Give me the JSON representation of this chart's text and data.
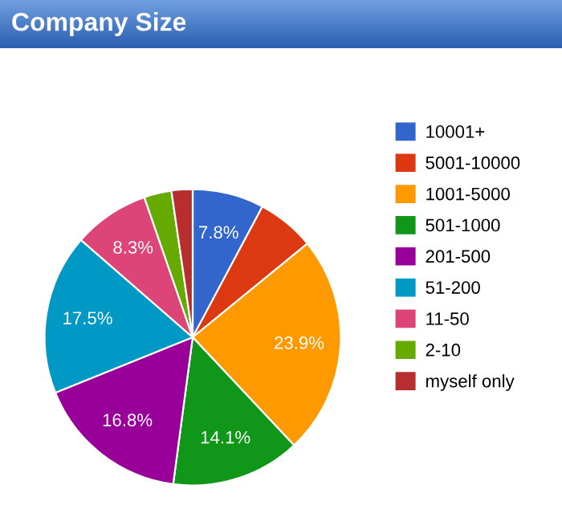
{
  "chart_data": {
    "type": "pie",
    "title": "Company Size",
    "categories": [
      "10001+",
      "5001-10000",
      "1001-5000",
      "501-1000",
      "201-500",
      "51-200",
      "11-50",
      "2-10",
      "myself only"
    ],
    "values": [
      7.8,
      6.3,
      23.9,
      14.1,
      16.8,
      17.5,
      8.3,
      3.0,
      2.3
    ],
    "value_labels": [
      "7.8%",
      null,
      "23.9%",
      "14.1%",
      "16.8%",
      "17.5%",
      "8.3%",
      null,
      null
    ],
    "colors": [
      "#3366cc",
      "#dc3912",
      "#ff9900",
      "#109618",
      "#990099",
      "#0099c6",
      "#dd4477",
      "#66aa00",
      "#b82e2e"
    ],
    "legend": "right"
  }
}
